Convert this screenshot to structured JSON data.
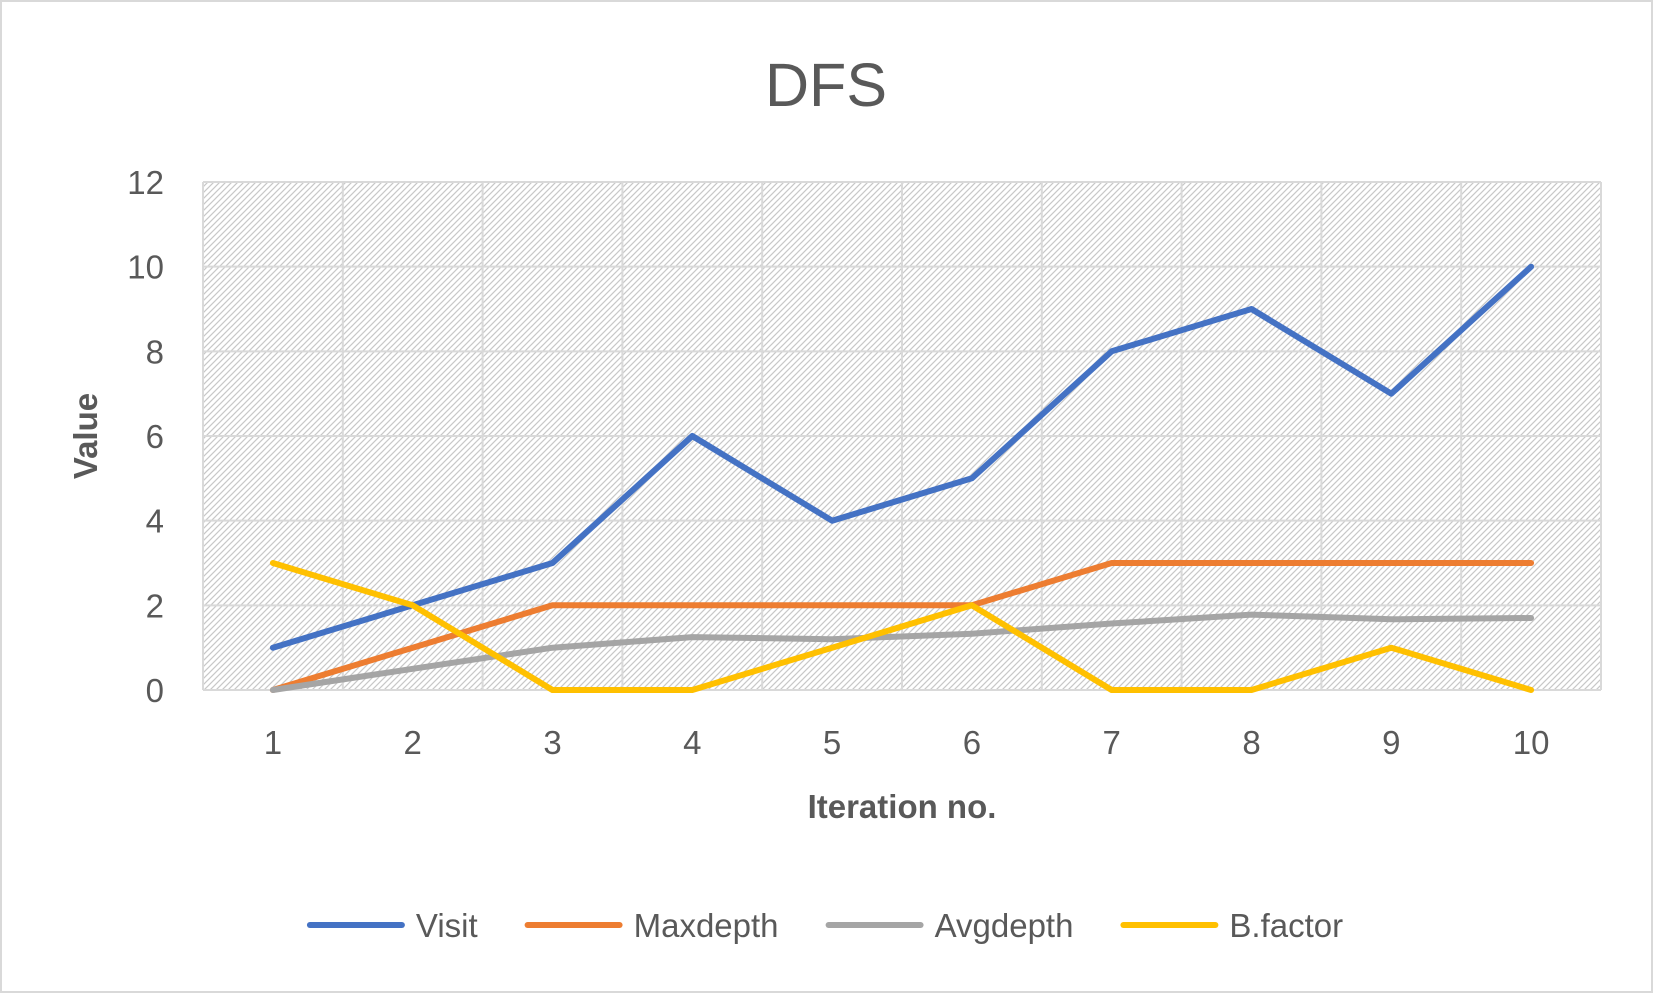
{
  "chart_data": {
    "type": "line",
    "title": "DFS",
    "xlabel": "Iteration no.",
    "ylabel": "Value",
    "categories": [
      "1",
      "2",
      "3",
      "4",
      "5",
      "6",
      "7",
      "8",
      "9",
      "10"
    ],
    "ylim": [
      0,
      12
    ],
    "yticks": [
      0,
      2,
      4,
      6,
      8,
      10,
      12
    ],
    "yticks_labels": [
      "0",
      "2",
      "4",
      "6",
      "8",
      "10",
      "12"
    ],
    "grid": true,
    "legend_position": "bottom",
    "series": [
      {
        "name": "Visit",
        "color": "#4472C4",
        "values": [
          1,
          2,
          3,
          6,
          4,
          5,
          8,
          9,
          7,
          10
        ]
      },
      {
        "name": "Maxdepth",
        "color": "#ED7D31",
        "values": [
          0,
          1,
          2,
          2,
          2,
          2,
          3,
          3,
          3,
          3
        ]
      },
      {
        "name": "Avgdepth",
        "color": "#A5A5A5",
        "values": [
          0,
          0.5,
          1,
          1.25,
          1.2,
          1.33,
          1.57,
          1.78,
          1.67,
          1.7
        ]
      },
      {
        "name": "B.factor",
        "color": "#FFC000",
        "values": [
          3,
          2,
          0,
          0,
          1,
          2,
          0,
          0,
          1,
          0
        ]
      }
    ]
  }
}
